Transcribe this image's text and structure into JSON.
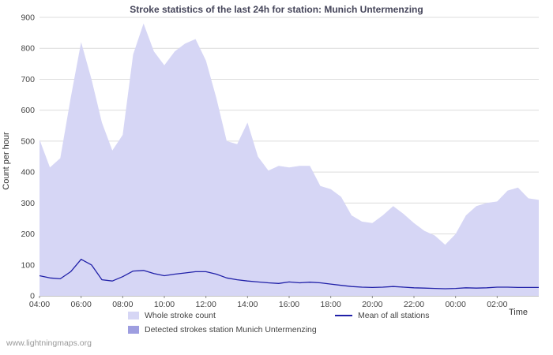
{
  "title": "Stroke statistics of the last 24h for station: Munich Untermenzing",
  "watermark": "www.lightningmaps.org",
  "chart_data": {
    "type": "area",
    "title": "Stroke statistics of the last 24h for station: Munich Untermenzing",
    "xlabel": "Time",
    "ylabel": "Count per hour",
    "ylim": [
      0,
      900
    ],
    "ytick_interval": 100,
    "grid": true,
    "legend_position": "bottom",
    "x_start": "04:00",
    "x_minutes_per_point": 30,
    "x_tick_step": 4,
    "x_tick_labels": [
      "04:00",
      "06:00",
      "08:00",
      "10:00",
      "12:00",
      "14:00",
      "16:00",
      "18:00",
      "20:00",
      "22:00",
      "00:00",
      "02:00"
    ],
    "series": [
      {
        "name": "Whole stroke count",
        "type": "area",
        "color": "#d6d6f5",
        "values": [
          505,
          415,
          445,
          640,
          820,
          700,
          560,
          470,
          520,
          780,
          880,
          790,
          745,
          790,
          815,
          830,
          760,
          640,
          500,
          490,
          560,
          450,
          405,
          420,
          415,
          420,
          420,
          355,
          345,
          320,
          260,
          240,
          235,
          260,
          290,
          265,
          235,
          210,
          195,
          165,
          200,
          260,
          290,
          300,
          305,
          340,
          350,
          315,
          310
        ]
      },
      {
        "name": "Detected strokes station Munich Untermenzing",
        "type": "area",
        "color": "#9e9ee0",
        "values": [
          0,
          0,
          0,
          0,
          0,
          0,
          0,
          0,
          0,
          0,
          0,
          0,
          0,
          0,
          0,
          0,
          0,
          0,
          0,
          0,
          0,
          0,
          0,
          0,
          0,
          0,
          0,
          0,
          0,
          0,
          0,
          0,
          0,
          0,
          0,
          0,
          0,
          0,
          0,
          0,
          0,
          0,
          0,
          0,
          0,
          0,
          0,
          0,
          0
        ]
      },
      {
        "name": "Mean of all stations",
        "type": "line",
        "color": "#2020a8",
        "values": [
          65,
          58,
          55,
          78,
          118,
          100,
          52,
          48,
          62,
          80,
          82,
          72,
          65,
          70,
          74,
          78,
          78,
          70,
          58,
          52,
          48,
          45,
          42,
          40,
          45,
          42,
          44,
          42,
          38,
          34,
          30,
          28,
          27,
          28,
          30,
          28,
          26,
          25,
          24,
          23,
          24,
          26,
          25,
          26,
          28,
          28,
          27,
          27,
          27
        ]
      }
    ]
  },
  "axes": {
    "y_ticks": [
      "0",
      "100",
      "200",
      "300",
      "400",
      "500",
      "600",
      "700",
      "800",
      "900"
    ]
  }
}
